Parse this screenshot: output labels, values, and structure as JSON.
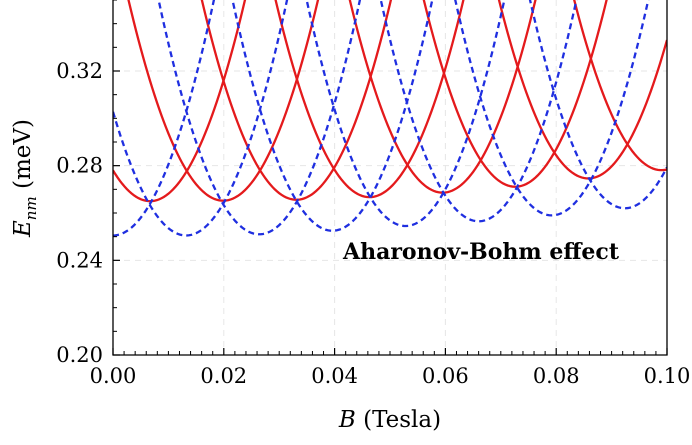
{
  "chart_data": {
    "type": "line",
    "title": "",
    "xlabel": "B (Tesla)",
    "ylabel": "E_nm (meV)",
    "xlabel_parts": {
      "symbol": "B",
      "unit": " (Tesla)"
    },
    "ylabel_parts": {
      "symbol": "E",
      "subscript": "nm",
      "unit": " (meV)"
    },
    "xlim": [
      0.0,
      0.1
    ],
    "ylim": [
      0.2,
      0.35
    ],
    "xticks": [
      0.0,
      0.02,
      0.04,
      0.06,
      0.08,
      0.1
    ],
    "xtick_labels": [
      "0.00",
      "0.02",
      "0.04",
      "0.06",
      "0.08",
      "0.10"
    ],
    "yticks": [
      0.2,
      0.24,
      0.28,
      0.32
    ],
    "ytick_labels": [
      "0.20",
      "0.24",
      "0.28",
      "0.32"
    ],
    "grid": true,
    "annotation": "Aharonov-Bohm effect",
    "series": [
      {
        "style": "solid",
        "color": "#e41a1c",
        "parabola_minima": [
          [
            0.0067,
            0.265
          ],
          [
            0.0199,
            0.2652
          ],
          [
            0.0331,
            0.2656
          ],
          [
            0.0463,
            0.2667
          ],
          [
            0.0595,
            0.2686
          ],
          [
            0.0726,
            0.2711
          ],
          [
            0.0858,
            0.2746
          ],
          [
            0.099,
            0.2781
          ]
        ],
        "curvature": 290,
        "visible_x_range": [
          0.0,
          0.1
        ]
      },
      {
        "style": "dashed",
        "color": "#1f2fe0",
        "parabola_minima": [
          [
            0.0,
            0.2505
          ],
          [
            0.0132,
            0.2505
          ],
          [
            0.0264,
            0.251
          ],
          [
            0.0396,
            0.2525
          ],
          [
            0.0528,
            0.2545
          ],
          [
            0.066,
            0.2565
          ],
          [
            0.0792,
            0.259
          ],
          [
            0.0924,
            0.262
          ]
        ],
        "curvature": 300,
        "visible_x_range": [
          0.0,
          0.1
        ]
      }
    ]
  }
}
